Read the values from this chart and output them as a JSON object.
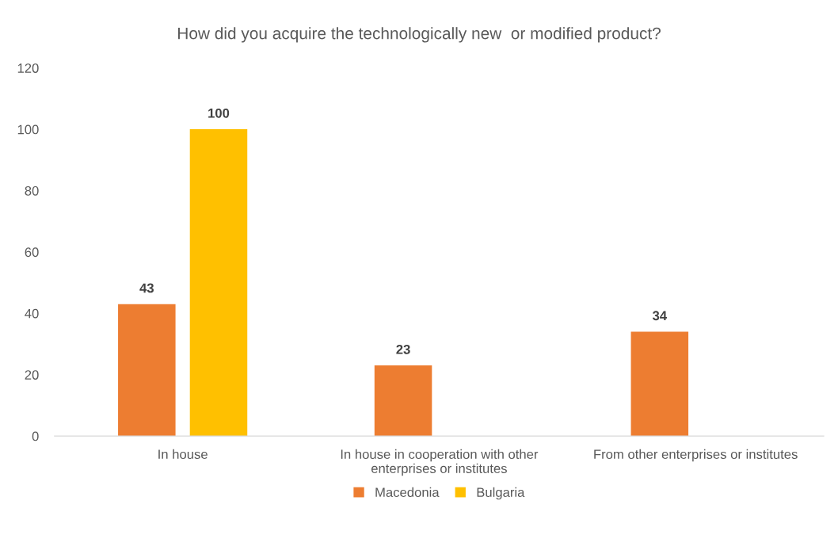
{
  "chart_data": {
    "type": "bar",
    "title": "How did you acquire the technologically new  or modified product?",
    "categories": [
      "In house",
      "In house in cooperation with other\nenterprises or institutes",
      "From other enterprises or institutes"
    ],
    "series": [
      {
        "name": "Macedonia",
        "color": "#ed7d31",
        "values": [
          43,
          23,
          34
        ]
      },
      {
        "name": "Bulgaria",
        "color": "#ffc000",
        "values": [
          100,
          null,
          null
        ]
      }
    ],
    "ylim": [
      0,
      120
    ],
    "yticks": [
      0,
      20,
      40,
      60,
      80,
      100,
      120
    ],
    "grid": false,
    "legend": "bottom",
    "data_labels": true
  }
}
